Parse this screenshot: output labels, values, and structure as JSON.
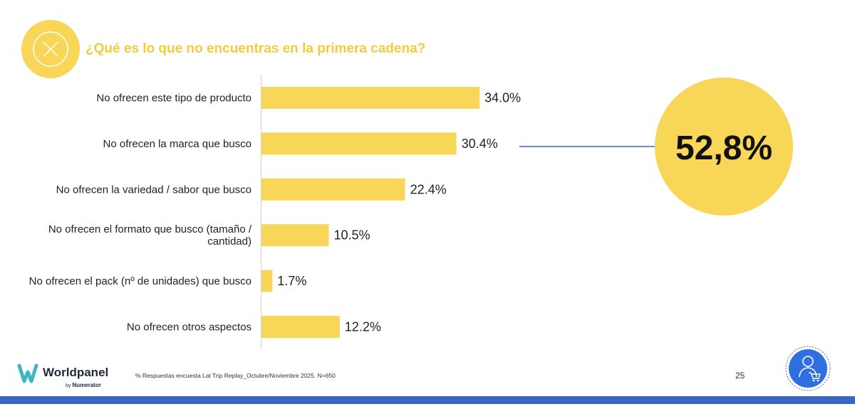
{
  "title": "¿Qué es lo que no encuentras en la primera cadena?",
  "chart_data": {
    "type": "bar",
    "orientation": "horizontal",
    "title": "¿Qué es lo que no encuentras en la primera cadena?",
    "categories": [
      "No ofrecen este tipo de producto",
      "No ofrecen la marca que busco",
      "No ofrecen la variedad / sabor que busco",
      "No ofrecen el formato que busco (tamaño / cantidad)",
      "No ofrecen el pack (nº de unidades) que busco",
      "No ofrecen otros aspectos"
    ],
    "category_lines": [
      [
        "No ofrecen este tipo de producto"
      ],
      [
        "No ofrecen la marca que busco"
      ],
      [
        "No ofrecen la variedad / sabor que busco"
      ],
      [
        "No ofrecen el formato que busco (tamaño /",
        "cantidad)"
      ],
      [
        "No ofrecen el pack (nº de unidades) que busco"
      ],
      [
        "No ofrecen otros aspectos"
      ]
    ],
    "values": [
      34.0,
      30.4,
      22.4,
      10.5,
      1.7,
      12.2
    ],
    "value_labels": [
      "34.0%",
      "30.4%",
      "22.4%",
      "10.5%",
      "1.7%",
      "12.2%"
    ],
    "xlim": [
      0,
      100
    ],
    "bar_color": "#f8d657",
    "grid": false,
    "annotation": {
      "text": "52,8%",
      "points_to_category_index": 1,
      "circle_color": "#f8d657",
      "line_color": "#3a66c4"
    }
  },
  "footer": {
    "brand_name": "Worldpanel",
    "brand_sub_prefix": "by",
    "brand_sub_name": "Numerator",
    "footnote": "% Respuestas encuesta Lat Trip Replay_Octubre/Noviembre 2025. N=650",
    "page_number": "25"
  },
  "colors": {
    "title": "#f2cc3d",
    "accent_yellow": "#f8d657",
    "blue": "#3a66c4",
    "brand_teal": "#3fb6c4",
    "brand_dark": "#1e2a3a"
  },
  "icons": {
    "title_icon": "x-close-icon",
    "badge_icon": "shopper-cart-icon"
  }
}
